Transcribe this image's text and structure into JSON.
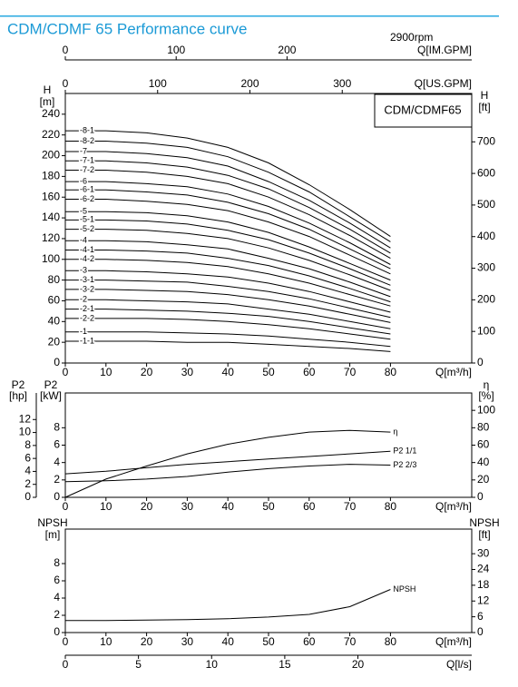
{
  "title": "CDM/CDMF 65 Performance curve",
  "speed": "2900rpm",
  "chart_data": [
    {
      "type": "line",
      "model": "CDM/CDMF65",
      "color": "#000000",
      "x_label": "Q[m³/h]",
      "xlim": [
        0,
        100
      ],
      "xticks": [
        0,
        10,
        20,
        30,
        40,
        50,
        60,
        70,
        80
      ],
      "x_top_axes": [
        {
          "label": "Q[IM.GPM]",
          "xlim": [
            0,
            366.6
          ],
          "xticks": [
            0,
            100,
            200
          ]
        },
        {
          "label": "Q[US.GPM]",
          "xlim": [
            0,
            440.3
          ],
          "xticks": [
            0,
            100,
            200,
            300
          ]
        }
      ],
      "y_label": "H",
      "y_unit": "[m]",
      "ylim": [
        0,
        260
      ],
      "yticks": [
        0,
        20,
        40,
        60,
        80,
        100,
        120,
        140,
        160,
        180,
        200,
        220,
        240
      ],
      "y2_label": "H",
      "y2_unit": "[ft]",
      "y2lim": [
        0,
        853
      ],
      "y2ticks": [
        0,
        100,
        200,
        300,
        400,
        500,
        600,
        700
      ],
      "x": [
        0,
        10,
        20,
        30,
        40,
        50,
        60,
        70,
        80
      ],
      "series": [
        {
          "name": "-8-1",
          "values": [
            224,
            224,
            222,
            217,
            208,
            193,
            172,
            148,
            122
          ]
        },
        {
          "name": "-8-2",
          "values": [
            214,
            214,
            212,
            208,
            199,
            184,
            165,
            141,
            117
          ]
        },
        {
          "name": "-7",
          "values": [
            204,
            204,
            202,
            198,
            190,
            175,
            157,
            135,
            111
          ]
        },
        {
          "name": "-7-1",
          "values": [
            195,
            195,
            193,
            189,
            181,
            168,
            150,
            129,
            106
          ]
        },
        {
          "name": "-7-2",
          "values": [
            186,
            186,
            184,
            180,
            173,
            160,
            143,
            123,
            101
          ]
        },
        {
          "name": "-6",
          "values": [
            175,
            175,
            173,
            170,
            163,
            151,
            135,
            116,
            95
          ]
        },
        {
          "name": "-6-1",
          "values": [
            167,
            167,
            165,
            162,
            155,
            144,
            129,
            110,
            91
          ]
        },
        {
          "name": "-6-2",
          "values": [
            158,
            158,
            156,
            153,
            147,
            136,
            122,
            104,
            86
          ]
        },
        {
          "name": "-5",
          "values": [
            146,
            146,
            145,
            142,
            136,
            126,
            112,
            96,
            80
          ]
        },
        {
          "name": "-5-1",
          "values": [
            138,
            138,
            137,
            134,
            128,
            119,
            106,
            91,
            75
          ]
        },
        {
          "name": "-5-2",
          "values": [
            129,
            129,
            128,
            125,
            120,
            111,
            99,
            85,
            70
          ]
        },
        {
          "name": "-4",
          "values": [
            118,
            118,
            117,
            114,
            110,
            101,
            91,
            78,
            64
          ]
        },
        {
          "name": "-4-1",
          "values": [
            109,
            109,
            108,
            106,
            101,
            94,
            84,
            72,
            59
          ]
        },
        {
          "name": "-4-2",
          "values": [
            100,
            100,
            99,
            97,
            93,
            86,
            77,
            66,
            55
          ]
        },
        {
          "name": "-3",
          "values": [
            89,
            89,
            88,
            86,
            83,
            77,
            69,
            59,
            49
          ]
        },
        {
          "name": "-3-1",
          "values": [
            80,
            80,
            79,
            78,
            74,
            69,
            62,
            53,
            44
          ]
        },
        {
          "name": "-3-2",
          "values": [
            71,
            71,
            70,
            69,
            66,
            61,
            55,
            47,
            39
          ]
        },
        {
          "name": "-2",
          "values": [
            61,
            61,
            60,
            59,
            57,
            52,
            47,
            40,
            33
          ]
        },
        {
          "name": "-2-1",
          "values": [
            52,
            52,
            51,
            50,
            48,
            45,
            40,
            34,
            28
          ]
        },
        {
          "name": "-2-2",
          "values": [
            43,
            43,
            43,
            42,
            40,
            37,
            33,
            28,
            23
          ]
        },
        {
          "name": "-1",
          "values": [
            30,
            30,
            30,
            29,
            28,
            26,
            23,
            20,
            16
          ]
        },
        {
          "name": "-1-1",
          "values": [
            21,
            21,
            21,
            20,
            20,
            18,
            16,
            14,
            11
          ]
        }
      ]
    },
    {
      "type": "line",
      "color": "#000000",
      "x_label": "Q[m³/h]",
      "xlim": [
        0,
        100
      ],
      "xticks": [
        0,
        10,
        20,
        30,
        40,
        50,
        60,
        70,
        80
      ],
      "y_label": "P2",
      "y_unit": "[kW]",
      "ylim": [
        0,
        12
      ],
      "yticks": [
        0,
        2,
        4,
        6,
        8
      ],
      "y_alt": {
        "label": "P2",
        "unit": "[hp]",
        "ylim": [
          0,
          16.1
        ],
        "yticks": [
          0,
          2,
          4,
          6,
          8,
          10,
          12
        ]
      },
      "y2_label": "η",
      "y2_unit": "[%]",
      "y2lim": [
        0,
        120
      ],
      "y2ticks": [
        0,
        20,
        40,
        60,
        80,
        100
      ],
      "x": [
        0,
        10,
        20,
        30,
        40,
        50,
        60,
        70,
        80
      ],
      "series": [
        {
          "name": "η",
          "axis": "y2",
          "values": [
            0,
            21,
            36,
            50,
            61,
            69,
            75,
            77,
            75
          ]
        },
        {
          "name": "P2 1/1",
          "values": [
            2.7,
            3.0,
            3.4,
            3.8,
            4.1,
            4.4,
            4.7,
            5.0,
            5.3
          ]
        },
        {
          "name": "P2 2/3",
          "values": [
            1.8,
            1.9,
            2.1,
            2.4,
            2.9,
            3.3,
            3.6,
            3.8,
            3.7
          ]
        }
      ]
    },
    {
      "type": "line",
      "color": "#000000",
      "x_label": "Q[m³/h]",
      "xlim": [
        0,
        100
      ],
      "xticks": [
        0,
        10,
        20,
        30,
        40,
        50,
        60,
        70,
        80
      ],
      "x_bottom_axis": {
        "label": "Q[l/s]",
        "xlim": [
          0,
          27.78
        ],
        "xticks": [
          0,
          5,
          10,
          15,
          20
        ]
      },
      "y_label": "NPSH",
      "y_unit": "[m]",
      "ylim": [
        0,
        12
      ],
      "yticks": [
        0,
        2,
        4,
        6,
        8
      ],
      "y2_label": "NPSH",
      "y2_unit": "[ft]",
      "y2lim": [
        0,
        39.37
      ],
      "y2ticks": [
        0,
        6,
        12,
        18,
        24,
        30
      ],
      "x": [
        0,
        10,
        20,
        30,
        40,
        50,
        60,
        70,
        80
      ],
      "series": [
        {
          "name": "NPSH",
          "values": [
            1.4,
            1.4,
            1.45,
            1.5,
            1.6,
            1.8,
            2.1,
            3.0,
            5.0
          ]
        }
      ]
    }
  ]
}
